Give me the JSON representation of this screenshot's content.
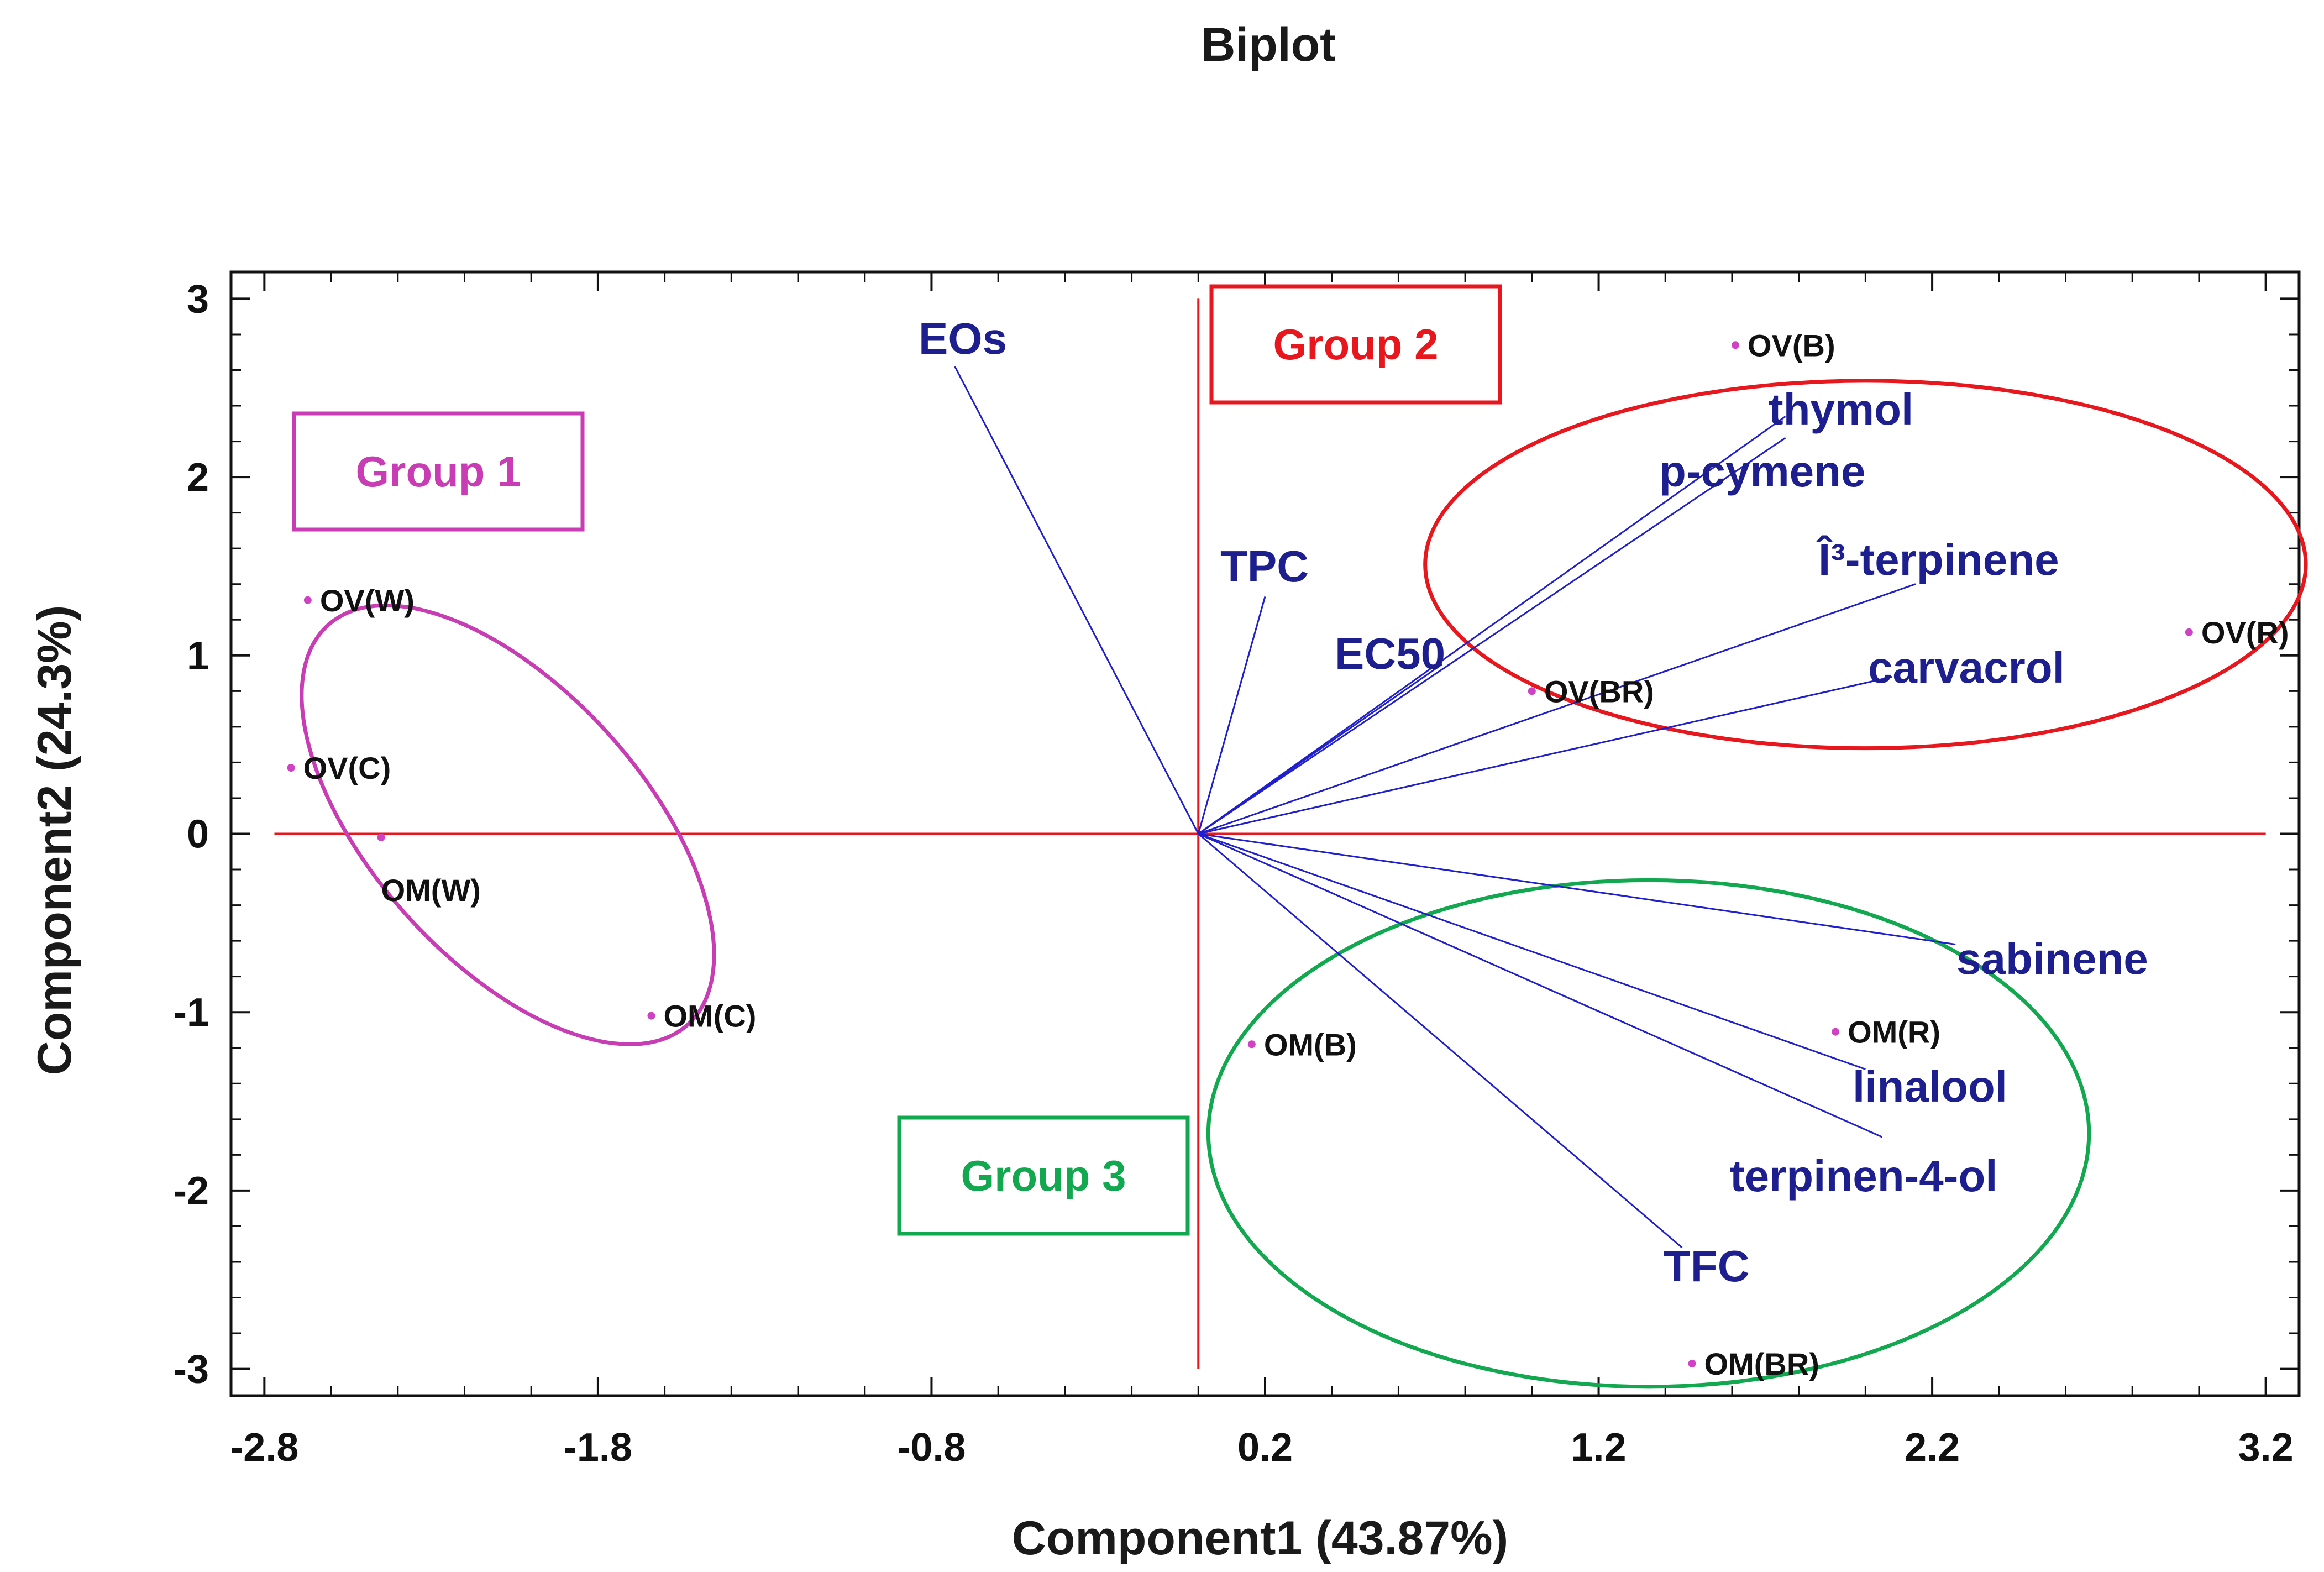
{
  "chart_data": {
    "type": "scatter",
    "subtype": "biplot",
    "title": "Biplot",
    "xlabel": "Component1 (43.87%)",
    "ylabel": "Component2 (24.3%)",
    "xlim": [
      -2.9,
      3.3
    ],
    "ylim": [
      -3.15,
      3.15
    ],
    "xticks": [
      "-2.8",
      "-1.8",
      "-0.8",
      "0.2",
      "1.2",
      "2.2",
      "3.2"
    ],
    "yticks": [
      "3",
      "2",
      "1",
      "0",
      "-1",
      "-2",
      "-3"
    ],
    "reference_lines": {
      "x": 0,
      "y": 0,
      "color": "#e8161d"
    },
    "vectors": [
      {
        "name": "EOs",
        "x": -0.73,
        "y": 2.62
      },
      {
        "name": "TPC",
        "x": 0.2,
        "y": 1.33
      },
      {
        "name": "EC50",
        "x": 0.73,
        "y": 0.95
      },
      {
        "name": "thymol",
        "x": 1.76,
        "y": 2.34
      },
      {
        "name": "p-cymene",
        "x": 1.76,
        "y": 2.22
      },
      {
        "name": "Î³-terpinene",
        "x": 2.15,
        "y": 1.4
      },
      {
        "name": "carvacrol",
        "x": 2.08,
        "y": 0.88
      },
      {
        "name": "sabinene",
        "x": 2.27,
        "y": -0.62
      },
      {
        "name": "linalool",
        "x": 2.0,
        "y": -1.32
      },
      {
        "name": "terpinen-4-ol",
        "x": 2.05,
        "y": -1.7
      },
      {
        "name": "TFC",
        "x": 1.45,
        "y": -2.32
      }
    ],
    "observations": [
      {
        "name": "OV(W)",
        "x": -2.67,
        "y": 1.31
      },
      {
        "name": "OV(C)",
        "x": -2.72,
        "y": 0.37
      },
      {
        "name": "OM(W)",
        "x": -2.45,
        "y": -0.02
      },
      {
        "name": "OM(C)",
        "x": -1.64,
        "y": -1.02
      },
      {
        "name": "OV(B)",
        "x": 1.61,
        "y": 2.74
      },
      {
        "name": "OV(BR)",
        "x": 1.0,
        "y": 0.8
      },
      {
        "name": "OV(R)",
        "x": 2.97,
        "y": 1.13
      },
      {
        "name": "OM(B)",
        "x": 0.16,
        "y": -1.18
      },
      {
        "name": "OM(R)",
        "x": 1.91,
        "y": -1.11
      },
      {
        "name": "OM(BR)",
        "x": 1.48,
        "y": -2.97
      }
    ],
    "groups": [
      {
        "name": "Group 1",
        "color": "#c83cb4",
        "ellipse": {
          "cx": -2.07,
          "cy": 0.05,
          "rx": 1.05,
          "ry": 0.53,
          "angle_deg": -48
        }
      },
      {
        "name": "Group 2",
        "color": "#e8161d",
        "ellipse": {
          "cx": 2.0,
          "cy": 1.51,
          "rx": 1.32,
          "ry": 1.03,
          "angle_deg": 0
        }
      },
      {
        "name": "Group 3",
        "color": "#12a84f",
        "ellipse": {
          "cx": 1.35,
          "cy": -1.68,
          "rx": 1.32,
          "ry": 1.42,
          "angle_deg": 0
        }
      }
    ],
    "colors": {
      "vector": "#1f1fd0",
      "vector_label": "#1d1f8f",
      "point": "#d042c4",
      "axis": "#111111"
    }
  }
}
